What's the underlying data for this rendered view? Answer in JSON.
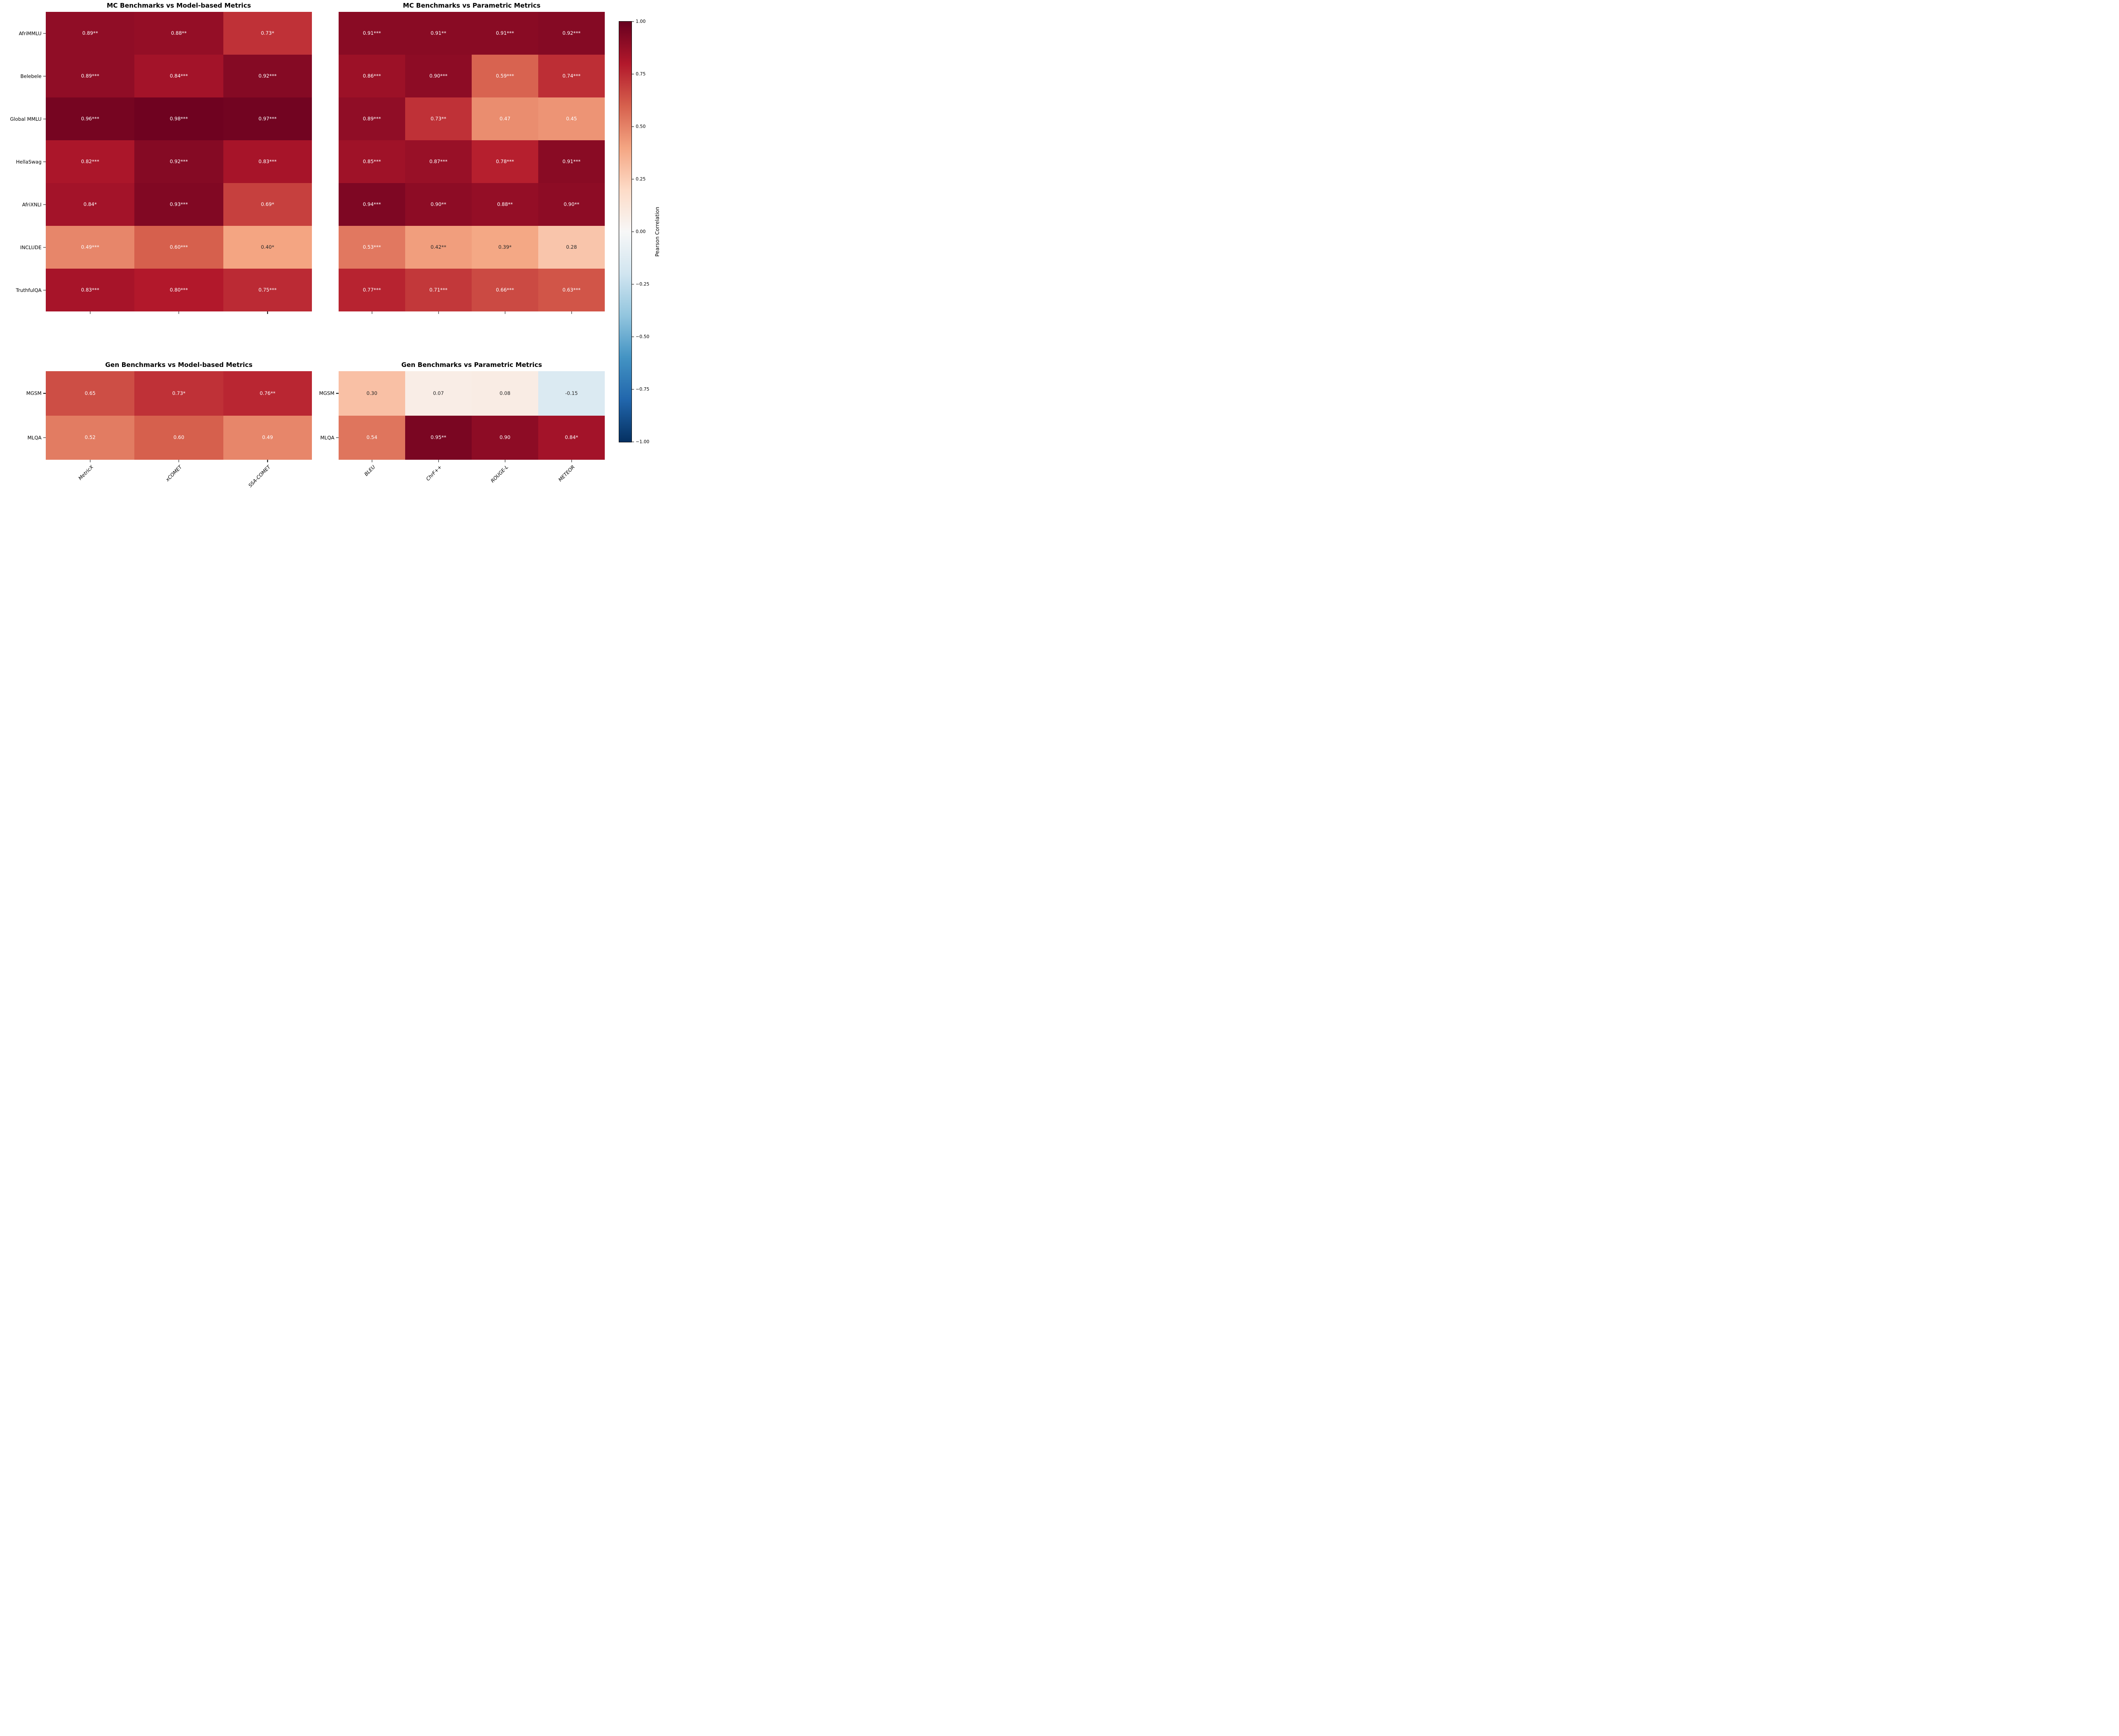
{
  "chart_data": [
    {
      "type": "heatmap",
      "title": "MC Benchmarks vs Model-based Metrics",
      "rows": [
        "AfriMMLU",
        "Belebele",
        "Global MMLU",
        "HellaSwag",
        "AfriXNLI",
        "INCLUDE",
        "TruthfulQA"
      ],
      "cols": [
        "MetricX",
        "xCOMET",
        "SSA-COMET"
      ],
      "values": [
        [
          0.89,
          0.88,
          0.73
        ],
        [
          0.89,
          0.84,
          0.92
        ],
        [
          0.96,
          0.98,
          0.97
        ],
        [
          0.82,
          0.92,
          0.83
        ],
        [
          0.84,
          0.93,
          0.69
        ],
        [
          0.49,
          0.6,
          0.4
        ],
        [
          0.83,
          0.8,
          0.75
        ]
      ],
      "labels": [
        [
          "0.89**",
          "0.88**",
          "0.73*"
        ],
        [
          "0.89***",
          "0.84***",
          "0.92***"
        ],
        [
          "0.96***",
          "0.98***",
          "0.97***"
        ],
        [
          "0.82***",
          "0.92***",
          "0.83***"
        ],
        [
          "0.84*",
          "0.93***",
          "0.69*"
        ],
        [
          "0.49***",
          "0.60***",
          "0.40*"
        ],
        [
          "0.83***",
          "0.80***",
          "0.75***"
        ]
      ],
      "show_row_labels": true,
      "show_col_labels": false,
      "vmin": -1,
      "vmax": 1,
      "cmap": "RdBu_r"
    },
    {
      "type": "heatmap",
      "title": "MC Benchmarks vs Parametric Metrics",
      "rows": [
        "AfriMMLU",
        "Belebele",
        "Global MMLU",
        "HellaSwag",
        "AfriXNLI",
        "INCLUDE",
        "TruthfulQA"
      ],
      "cols": [
        "BLEU",
        "ChrF++",
        "ROUGE-L",
        "METEOR"
      ],
      "values": [
        [
          0.91,
          0.91,
          0.91,
          0.92
        ],
        [
          0.86,
          0.9,
          0.59,
          0.74
        ],
        [
          0.89,
          0.73,
          0.47,
          0.45
        ],
        [
          0.85,
          0.87,
          0.78,
          0.91
        ],
        [
          0.94,
          0.9,
          0.88,
          0.9
        ],
        [
          0.53,
          0.42,
          0.39,
          0.28
        ],
        [
          0.77,
          0.71,
          0.66,
          0.63
        ]
      ],
      "labels": [
        [
          "0.91***",
          "0.91**",
          "0.91***",
          "0.92***"
        ],
        [
          "0.86***",
          "0.90***",
          "0.59***",
          "0.74***"
        ],
        [
          "0.89***",
          "0.73**",
          "0.47",
          "0.45"
        ],
        [
          "0.85***",
          "0.87***",
          "0.78***",
          "0.91***"
        ],
        [
          "0.94***",
          "0.90**",
          "0.88**",
          "0.90**"
        ],
        [
          "0.53***",
          "0.42**",
          "0.39*",
          "0.28"
        ],
        [
          "0.77***",
          "0.71***",
          "0.66***",
          "0.63***"
        ]
      ],
      "show_row_labels": false,
      "show_col_labels": false,
      "vmin": -1,
      "vmax": 1,
      "cmap": "RdBu_r"
    },
    {
      "type": "heatmap",
      "title": "Gen Benchmarks vs Model-based Metrics",
      "rows": [
        "MGSM",
        "MLQA"
      ],
      "cols": [
        "MetricX",
        "xCOMET",
        "SSA-COMET"
      ],
      "values": [
        [
          0.65,
          0.73,
          0.76
        ],
        [
          0.52,
          0.6,
          0.49
        ]
      ],
      "labels": [
        [
          "0.65",
          "0.73*",
          "0.76**"
        ],
        [
          "0.52",
          "0.60",
          "0.49"
        ]
      ],
      "show_row_labels": true,
      "show_col_labels": true,
      "vmin": -1,
      "vmax": 1,
      "cmap": "RdBu_r"
    },
    {
      "type": "heatmap",
      "title": "Gen Benchmarks vs Parametric Metrics",
      "rows": [
        "MGSM",
        "MLQA"
      ],
      "cols": [
        "BLEU",
        "ChrF++",
        "ROUGE-L",
        "METEOR"
      ],
      "values": [
        [
          0.3,
          0.07,
          0.08,
          -0.15
        ],
        [
          0.54,
          0.95,
          0.9,
          0.84
        ]
      ],
      "labels": [
        [
          "0.30",
          "0.07",
          "0.08",
          "-0.15"
        ],
        [
          "0.54",
          "0.95**",
          "0.90",
          "0.84*"
        ]
      ],
      "show_row_labels": true,
      "show_col_labels": true,
      "vmin": -1,
      "vmax": 1,
      "cmap": "RdBu_r"
    }
  ],
  "colorbar": {
    "label": "Pearson Correlation",
    "vmin": -1,
    "vmax": 1,
    "ticks": [
      {
        "value": 1.0,
        "label": "1.00"
      },
      {
        "value": 0.75,
        "label": "0.75"
      },
      {
        "value": 0.5,
        "label": "0.50"
      },
      {
        "value": 0.25,
        "label": "0.25"
      },
      {
        "value": 0.0,
        "label": "0.00"
      },
      {
        "value": -0.25,
        "label": "−0.25"
      },
      {
        "value": -0.5,
        "label": "−0.50"
      },
      {
        "value": -0.75,
        "label": "−0.75"
      },
      {
        "value": -1.0,
        "label": "−1.00"
      }
    ],
    "cmap_stops": [
      "#67001f",
      "#b2182b",
      "#d6604d",
      "#f4a582",
      "#fddbc7",
      "#f7f7f7",
      "#d1e5f0",
      "#92c5de",
      "#4393c3",
      "#2166ac",
      "#053061"
    ],
    "dark_text_color": "#262626",
    "light_text_color": "#ffffff"
  }
}
